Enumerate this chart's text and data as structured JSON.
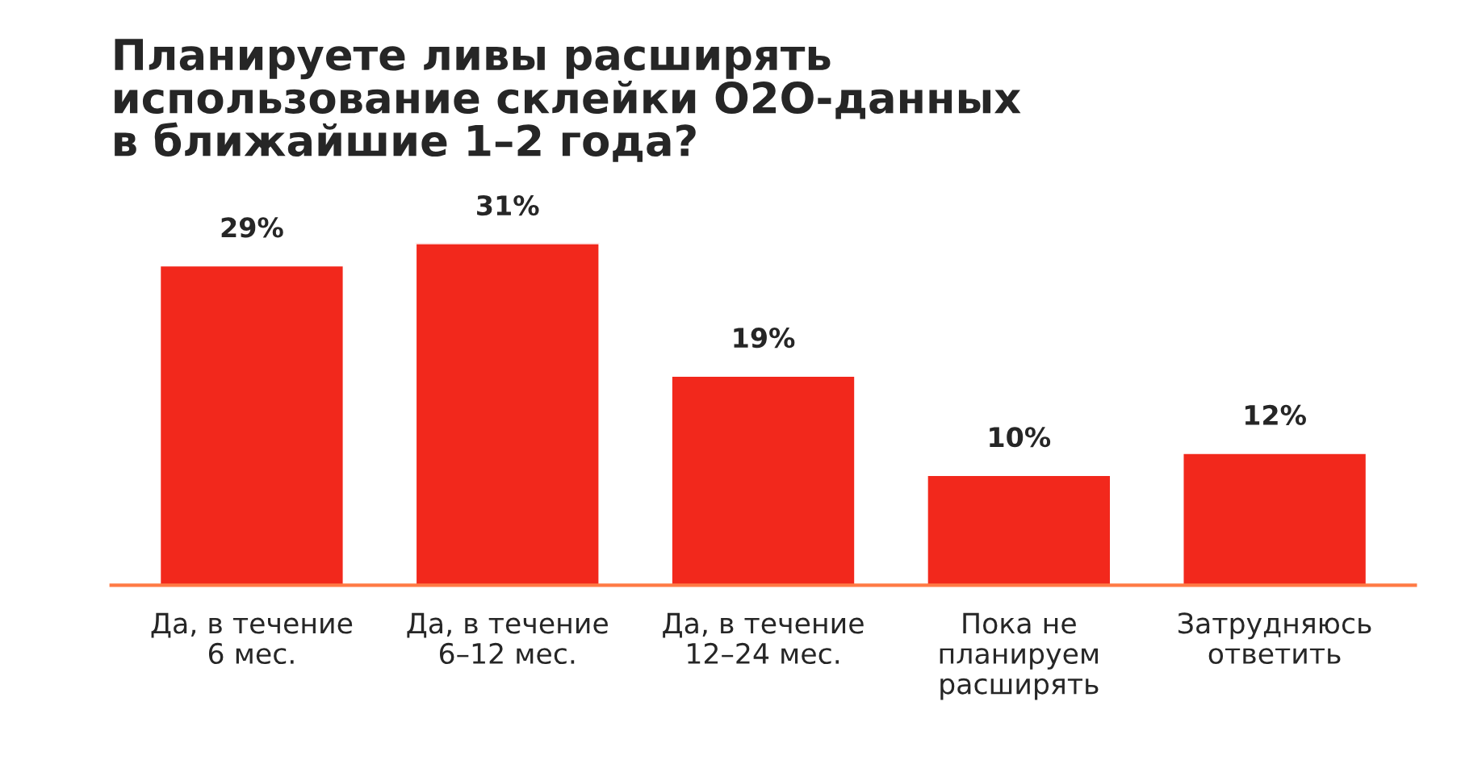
{
  "chart_data": {
    "type": "bar",
    "title": "Планируете ливы расширять\nиспользование склейки О2О-данных\nв ближайшие 1–2 года?",
    "categories": [
      "Да, в течение\n6 мес.",
      "Да, в течение\n6–12 мес.",
      "Да, в течение\n12–24 мес.",
      "Пока не\nпланируем\nрасширять",
      "Затрудняюсь\nответить"
    ],
    "values": [
      29,
      31,
      19,
      10,
      12
    ],
    "value_labels": [
      "29%",
      "31%",
      "19%",
      "10%",
      "12%"
    ],
    "color": "#f2281c",
    "ylim": [
      0,
      31
    ],
    "grid": false,
    "legend": false
  }
}
